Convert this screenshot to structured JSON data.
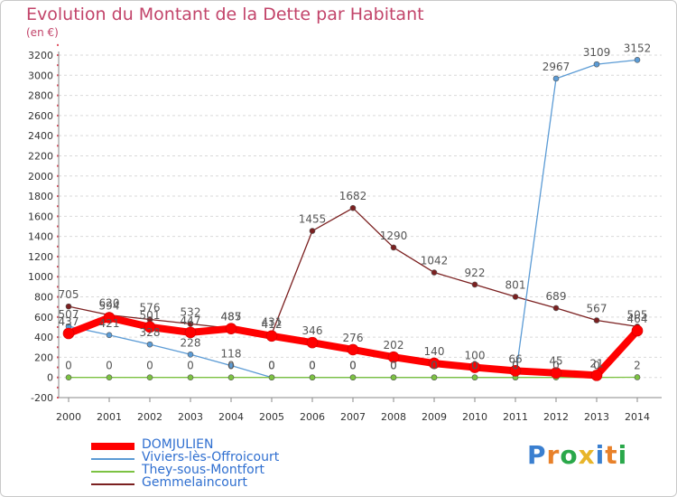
{
  "header": {
    "title": "Evolution du Montant de la Dette par Habitant",
    "unit": "(en €)"
  },
  "logo": {
    "text": "Proxiti"
  },
  "chart_data": {
    "type": "line",
    "title": "Evolution du Montant de la Dette par Habitant",
    "ylabel": "(en €)",
    "ylim": [
      -200,
      3200
    ],
    "yticks": [
      -200,
      0,
      200,
      400,
      600,
      800,
      1000,
      1200,
      1400,
      1600,
      1800,
      2000,
      2200,
      2400,
      2600,
      2800,
      3000,
      3200
    ],
    "grid": true,
    "legend_position": "bottom-left",
    "categories": [
      "2000",
      "2001",
      "2002",
      "2003",
      "2004",
      "2005",
      "2006",
      "2007",
      "2008",
      "2009",
      "2010",
      "2011",
      "2012",
      "2013",
      "2014"
    ],
    "series": [
      {
        "name": "DOMJULIEN",
        "color": "#ff0000",
        "values": [
          437,
          594,
          501,
          447,
          485,
          412,
          346,
          276,
          202,
          140,
          100,
          66,
          45,
          21,
          464
        ],
        "labels": [
          "437",
          "594",
          "501",
          "447",
          "485",
          "412",
          "346",
          "276",
          "202",
          "140",
          "100",
          "66",
          "45",
          "21",
          "464"
        ]
      },
      {
        "name": "Viviers-lès-Offroicourt",
        "color": "#5b9bd5",
        "values": [
          507,
          421,
          328,
          228,
          118,
          0,
          0,
          0,
          0,
          0,
          0,
          0,
          2967,
          3109,
          3152
        ],
        "labels": [
          "507",
          "421",
          "328",
          "228",
          "118",
          "0",
          "0",
          "0",
          "0",
          "0",
          "0",
          "0",
          "2967",
          "3109",
          "3152"
        ]
      },
      {
        "name": "They-sous-Montfort",
        "color": "#7cc242",
        "values": [
          0,
          0,
          0,
          0,
          0,
          0,
          0,
          0,
          0,
          0,
          0,
          0,
          0,
          0,
          2
        ],
        "labels": [
          "0",
          "0",
          "0",
          "0",
          "0",
          "0",
          "0",
          "0",
          "0",
          "0",
          "0",
          "0",
          "0",
          "0",
          "2"
        ]
      },
      {
        "name": "Gemmelaincourt",
        "color": "#7b2020",
        "values": [
          705,
          620,
          576,
          532,
          487,
          431,
          1455,
          1682,
          1290,
          1042,
          922,
          801,
          689,
          567,
          505
        ],
        "labels": [
          "705",
          "620",
          "576",
          "532",
          "487",
          "431",
          "1455",
          "1682",
          "1290",
          "1042",
          "922",
          "801",
          "689",
          "567",
          "505"
        ]
      }
    ]
  }
}
